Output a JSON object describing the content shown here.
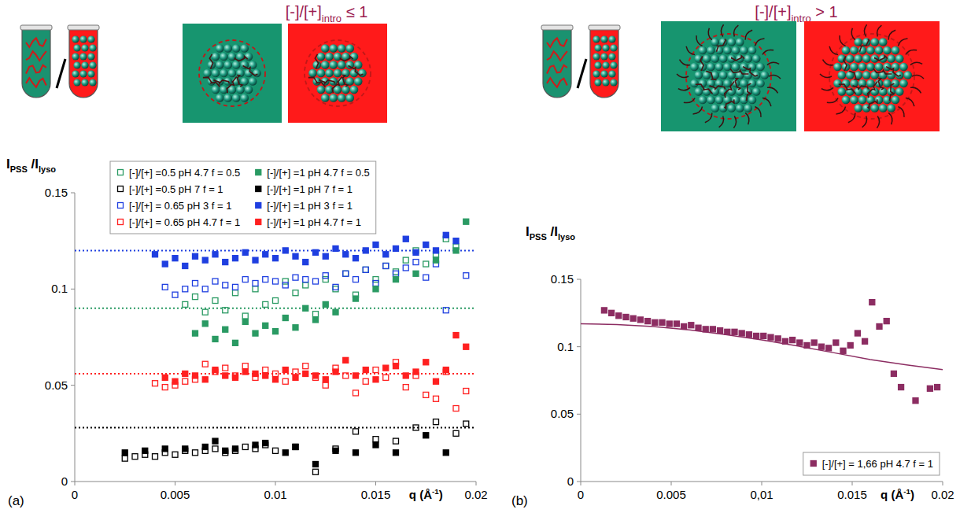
{
  "schematics": [
    {
      "title": [
        "[-]/[+]",
        "intro",
        " ≤ 1"
      ]
    },
    {
      "title": [
        "[-]/[+]",
        "intro",
        " > 1"
      ]
    }
  ],
  "chart_data": [
    {
      "type": "scatter",
      "label": "(a)",
      "y_label": [
        "I",
        "PSS",
        " /I",
        "lyso"
      ],
      "x_label": [
        "q (Å",
        "-1",
        ")"
      ],
      "xlim": [
        0,
        0.02
      ],
      "ylim": [
        0,
        0.15
      ],
      "xticks": [
        0,
        0.005,
        0.01,
        0.015,
        0.02
      ],
      "yticks": [
        0,
        0.05,
        0.1,
        0.15
      ],
      "grid": false,
      "legend": "top-left",
      "reference_lines": [
        {
          "value": 0.12,
          "color": "#1f3fe0",
          "line_style": "dotted"
        },
        {
          "value": 0.09,
          "color": "#2a9a63",
          "line_style": "dotted"
        },
        {
          "value": 0.056,
          "color": "#ff2020",
          "line_style": "dotted"
        },
        {
          "value": 0.028,
          "color": "#000000",
          "line_style": "dotted"
        }
      ],
      "series": [
        {
          "name": "[-]/[+] =0.5 pH 4.7 f = 0.5",
          "color": "#2a9a63",
          "marker": "square-open",
          "x": [
            0.0055,
            0.006,
            0.0065,
            0.007,
            0.0075,
            0.008,
            0.0085,
            0.009,
            0.0095,
            0.01,
            0.0105,
            0.011,
            0.0115,
            0.012,
            0.0125,
            0.013,
            0.0135,
            0.014,
            0.0145,
            0.015,
            0.0155,
            0.016,
            0.0165,
            0.017,
            0.0175,
            0.018,
            0.0185,
            0.019
          ],
          "values": [
            0.092,
            0.096,
            0.088,
            0.094,
            0.089,
            0.098,
            0.086,
            0.1,
            0.092,
            0.094,
            0.104,
            0.098,
            0.102,
            0.087,
            0.105,
            0.1,
            0.108,
            0.097,
            0.11,
            0.105,
            0.112,
            0.109,
            0.115,
            0.12,
            0.113,
            0.118,
            0.126,
            0.122
          ]
        },
        {
          "name": "[-]/[+] =0.5 pH 7 f = 1",
          "color": "#000000",
          "marker": "square-open",
          "x": [
            0.0025,
            0.003,
            0.0035,
            0.004,
            0.0045,
            0.005,
            0.0055,
            0.006,
            0.0065,
            0.007,
            0.0075,
            0.008,
            0.0085,
            0.009,
            0.0095,
            0.01,
            0.011,
            0.012,
            0.013,
            0.014,
            0.015,
            0.016,
            0.017,
            0.018,
            0.019,
            0.0195
          ],
          "values": [
            0.012,
            0.013,
            0.014,
            0.013,
            0.015,
            0.014,
            0.016,
            0.015,
            0.016,
            0.017,
            0.015,
            0.016,
            0.018,
            0.017,
            0.019,
            0.016,
            0.018,
            0.005,
            0.017,
            0.026,
            0.022,
            0.021,
            0.028,
            0.031,
            0.025,
            0.03
          ]
        },
        {
          "name": "[-]/[+] = 0.65 pH 3 f = 1",
          "color": "#1f3fe0",
          "marker": "square-open",
          "x": [
            0.0045,
            0.005,
            0.0055,
            0.006,
            0.0065,
            0.007,
            0.0075,
            0.008,
            0.0085,
            0.009,
            0.0095,
            0.01,
            0.0105,
            0.011,
            0.0115,
            0.012,
            0.0125,
            0.013,
            0.0135,
            0.014,
            0.0145,
            0.015,
            0.0155,
            0.016,
            0.0165,
            0.017,
            0.0175,
            0.018,
            0.0185,
            0.0195
          ],
          "values": [
            0.101,
            0.097,
            0.1,
            0.103,
            0.1,
            0.104,
            0.102,
            0.101,
            0.105,
            0.103,
            0.105,
            0.104,
            0.102,
            0.106,
            0.105,
            0.104,
            0.107,
            0.101,
            0.108,
            0.105,
            0.11,
            0.103,
            0.112,
            0.108,
            0.111,
            0.114,
            0.106,
            0.113,
            0.089,
            0.107
          ]
        },
        {
          "name": "[-]/[+] = 0.65 pH 4.7 f = 1",
          "color": "#ff2020",
          "marker": "square-open",
          "x": [
            0.004,
            0.0045,
            0.005,
            0.0055,
            0.006,
            0.0065,
            0.007,
            0.0075,
            0.008,
            0.0085,
            0.009,
            0.0095,
            0.01,
            0.0105,
            0.011,
            0.0115,
            0.012,
            0.0125,
            0.013,
            0.0135,
            0.014,
            0.0145,
            0.015,
            0.0155,
            0.016,
            0.0165,
            0.017,
            0.0175,
            0.018,
            0.0185,
            0.019,
            0.0195
          ],
          "values": [
            0.051,
            0.049,
            0.05,
            0.052,
            0.053,
            0.061,
            0.057,
            0.059,
            0.055,
            0.06,
            0.054,
            0.058,
            0.056,
            0.052,
            0.057,
            0.06,
            0.054,
            0.05,
            0.059,
            0.055,
            0.046,
            0.052,
            0.058,
            0.054,
            0.062,
            0.049,
            0.055,
            0.045,
            0.043,
            0.057,
            0.038,
            0.047
          ]
        },
        {
          "name": "[-]/[+] =1 pH 4.7 f = 0.5",
          "color": "#2a9a63",
          "marker": "square",
          "x": [
            0.006,
            0.0065,
            0.007,
            0.0075,
            0.008,
            0.0085,
            0.009,
            0.0095,
            0.01,
            0.0105,
            0.011,
            0.0115,
            0.012,
            0.0125,
            0.013,
            0.014,
            0.015,
            0.016,
            0.017,
            0.018,
            0.019,
            0.0195
          ],
          "values": [
            0.077,
            0.082,
            0.074,
            0.079,
            0.072,
            0.083,
            0.077,
            0.081,
            0.078,
            0.085,
            0.08,
            0.09,
            0.084,
            0.092,
            0.088,
            0.095,
            0.1,
            0.105,
            0.108,
            0.115,
            0.12,
            0.135
          ]
        },
        {
          "name": "[-]/[+] =1 pH 7 f = 1",
          "color": "#000000",
          "marker": "square",
          "x": [
            0.0025,
            0.0035,
            0.0045,
            0.0055,
            0.0065,
            0.007,
            0.0075,
            0.008,
            0.009,
            0.0095,
            0.0105,
            0.011,
            0.012,
            0.013,
            0.014,
            0.015,
            0.016,
            0.0175,
            0.0185
          ],
          "values": [
            0.015,
            0.016,
            0.017,
            0.017,
            0.018,
            0.021,
            0.016,
            0.017,
            0.019,
            0.02,
            0.015,
            0.018,
            0.009,
            0.016,
            0.015,
            0.019,
            0.015,
            0.024,
            0.015
          ]
        },
        {
          "name": "[-]/[+] =1 pH 3 f = 1",
          "color": "#1f3fe0",
          "marker": "square",
          "x": [
            0.004,
            0.0045,
            0.005,
            0.0055,
            0.006,
            0.0065,
            0.007,
            0.0075,
            0.008,
            0.0085,
            0.009,
            0.0095,
            0.01,
            0.0105,
            0.011,
            0.0115,
            0.012,
            0.0125,
            0.013,
            0.0135,
            0.014,
            0.0145,
            0.015,
            0.0155,
            0.016,
            0.0165,
            0.017,
            0.0175,
            0.018,
            0.0185,
            0.019
          ],
          "values": [
            0.118,
            0.113,
            0.116,
            0.112,
            0.117,
            0.115,
            0.118,
            0.114,
            0.116,
            0.119,
            0.115,
            0.118,
            0.116,
            0.12,
            0.117,
            0.114,
            0.119,
            0.117,
            0.121,
            0.118,
            0.116,
            0.12,
            0.123,
            0.118,
            0.121,
            0.126,
            0.119,
            0.123,
            0.12,
            0.128,
            0.125
          ]
        },
        {
          "name": "[-]/[+] =1 pH 4.7 f = 1",
          "color": "#ff2020",
          "marker": "square",
          "x": [
            0.0045,
            0.005,
            0.0055,
            0.006,
            0.0065,
            0.007,
            0.0075,
            0.008,
            0.0085,
            0.009,
            0.0095,
            0.01,
            0.0105,
            0.011,
            0.0115,
            0.012,
            0.0125,
            0.013,
            0.0135,
            0.014,
            0.0145,
            0.015,
            0.0155,
            0.016,
            0.0165,
            0.017,
            0.0175,
            0.018,
            0.0185,
            0.019,
            0.0195
          ],
          "values": [
            0.054,
            0.052,
            0.056,
            0.055,
            0.053,
            0.058,
            0.055,
            0.054,
            0.057,
            0.056,
            0.055,
            0.053,
            0.058,
            0.054,
            0.056,
            0.055,
            0.053,
            0.057,
            0.063,
            0.055,
            0.058,
            0.053,
            0.059,
            0.06,
            0.055,
            0.057,
            0.062,
            0.052,
            0.058,
            0.076,
            0.07
          ]
        }
      ]
    },
    {
      "type": "scatter",
      "label": "(b)",
      "y_label": [
        "I",
        "PSS",
        " /I",
        "lyso"
      ],
      "x_label": [
        "q (Å",
        "-1",
        ")"
      ],
      "xlim": [
        0,
        0.02
      ],
      "ylim": [
        0,
        0.15
      ],
      "xticks": [
        0,
        0.005,
        {
          "value": 0.01,
          "label": "0,01"
        },
        0.015,
        0.02
      ],
      "yticks": [
        0,
        0.05,
        0.1,
        0.15
      ],
      "grid": false,
      "legend": "bottom-right",
      "series": [
        {
          "name": "[-]/[+] = 1,66 pH 4.7 f = 1",
          "color": "#8c2d62",
          "marker": "square",
          "x": [
            0.0013,
            0.0017,
            0.0021,
            0.0025,
            0.0029,
            0.0033,
            0.0037,
            0.0041,
            0.0045,
            0.0049,
            0.0053,
            0.0057,
            0.0061,
            0.0065,
            0.0069,
            0.0073,
            0.0077,
            0.0081,
            0.0085,
            0.0089,
            0.0093,
            0.0097,
            0.0101,
            0.0105,
            0.0109,
            0.0113,
            0.0117,
            0.0121,
            0.0125,
            0.0129,
            0.0133,
            0.0137,
            0.0141,
            0.0145,
            0.0149,
            0.0153,
            0.0157,
            0.0161,
            0.0165,
            0.0169,
            0.0173,
            0.0177,
            0.0185,
            0.0193,
            0.0197
          ],
          "values": [
            0.127,
            0.125,
            0.123,
            0.122,
            0.121,
            0.12,
            0.119,
            0.118,
            0.118,
            0.117,
            0.117,
            0.115,
            0.116,
            0.114,
            0.113,
            0.113,
            0.112,
            0.111,
            0.111,
            0.11,
            0.109,
            0.108,
            0.108,
            0.107,
            0.106,
            0.104,
            0.105,
            0.103,
            0.101,
            0.103,
            0.1,
            0.099,
            0.103,
            0.097,
            0.101,
            0.11,
            0.104,
            0.133,
            0.115,
            0.119,
            0.08,
            0.07,
            0.06,
            0.069,
            0.07
          ]
        },
        {
          "type": "line",
          "color": "#8c2d62",
          "line_style": "solid",
          "x": [
            0,
            0.002,
            0.004,
            0.006,
            0.008,
            0.01,
            0.012,
            0.014,
            0.016,
            0.018,
            0.02
          ],
          "values": [
            0.117,
            0.1165,
            0.115,
            0.1125,
            0.109,
            0.105,
            0.1005,
            0.0955,
            0.0905,
            0.0865,
            0.083
          ]
        }
      ]
    }
  ]
}
